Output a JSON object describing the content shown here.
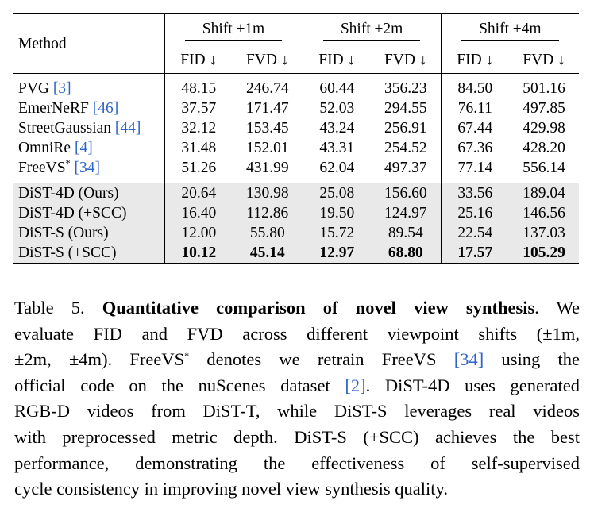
{
  "table": {
    "header": {
      "method": "Method",
      "groups": [
        "Shift ±1m",
        "Shift ±2m",
        "Shift ±4m"
      ],
      "fid": "FID ↓",
      "fvd": "FVD ↓"
    },
    "baselines": [
      {
        "name": "PVG",
        "ref": "[3]",
        "sup": "",
        "values": [
          "48.15",
          "246.74",
          "60.44",
          "356.23",
          "84.50",
          "501.16"
        ]
      },
      {
        "name": "EmerNeRF",
        "ref": "[46]",
        "sup": "",
        "values": [
          "37.57",
          "171.47",
          "52.03",
          "294.55",
          "76.11",
          "497.85"
        ]
      },
      {
        "name": "StreetGaussian",
        "ref": "[44]",
        "sup": "",
        "values": [
          "32.12",
          "153.45",
          "43.24",
          "256.91",
          "67.44",
          "429.98"
        ]
      },
      {
        "name": "OmniRe",
        "ref": "[4]",
        "sup": "",
        "values": [
          "31.48",
          "152.01",
          "43.31",
          "254.52",
          "67.36",
          "428.20"
        ]
      },
      {
        "name": "FreeVS",
        "ref": "[34]",
        "sup": "*",
        "values": [
          "51.26",
          "431.99",
          "62.04",
          "497.37",
          "77.14",
          "556.14"
        ]
      }
    ],
    "ours": [
      {
        "name": "DiST-4D (Ours)",
        "values": [
          "20.64",
          "130.98",
          "25.08",
          "156.60",
          "33.56",
          "189.04"
        ]
      },
      {
        "name": "DiST-4D (+SCC)",
        "values": [
          "16.40",
          "112.86",
          "19.50",
          "124.97",
          "25.16",
          "146.56"
        ]
      },
      {
        "name": "DiST-S (Ours)",
        "values": [
          "12.00",
          "55.80",
          "15.72",
          "89.54",
          "22.54",
          "137.03"
        ]
      },
      {
        "name": "DiST-S (+SCC)",
        "values": [
          "10.12",
          "45.14",
          "12.97",
          "68.80",
          "17.57",
          "105.29"
        ]
      }
    ]
  },
  "caption": {
    "label": "Table 5.",
    "title": "Quantitative comparison of novel view synthesis",
    "line1_rest": ". We",
    "line2": "evaluate FID and FVD across different viewpoint shifts (±1m,",
    "line3a": "±2m, ±4m).  FreeVS",
    "line3_sup": "*",
    "line3b": " denotes we retrain FreeVS ",
    "line3_ref": "[34]",
    "line3c": " using the",
    "line4a": "official code on the nuScenes dataset ",
    "line4_ref": "[2]",
    "line4b": ". DiST-4D uses generated",
    "line5": "RGB-D videos from DiST-T, while DiST-S leverages real videos",
    "line6": "with preprocessed metric depth. DiST-S (+SCC) achieves the best",
    "line7": "performance, demonstrating the effectiveness of self-supervised",
    "line8": "cycle consistency in improving novel view synthesis quality."
  },
  "colors": {
    "link": "#2e64c8",
    "ours_bg": "#e9e9e9"
  }
}
